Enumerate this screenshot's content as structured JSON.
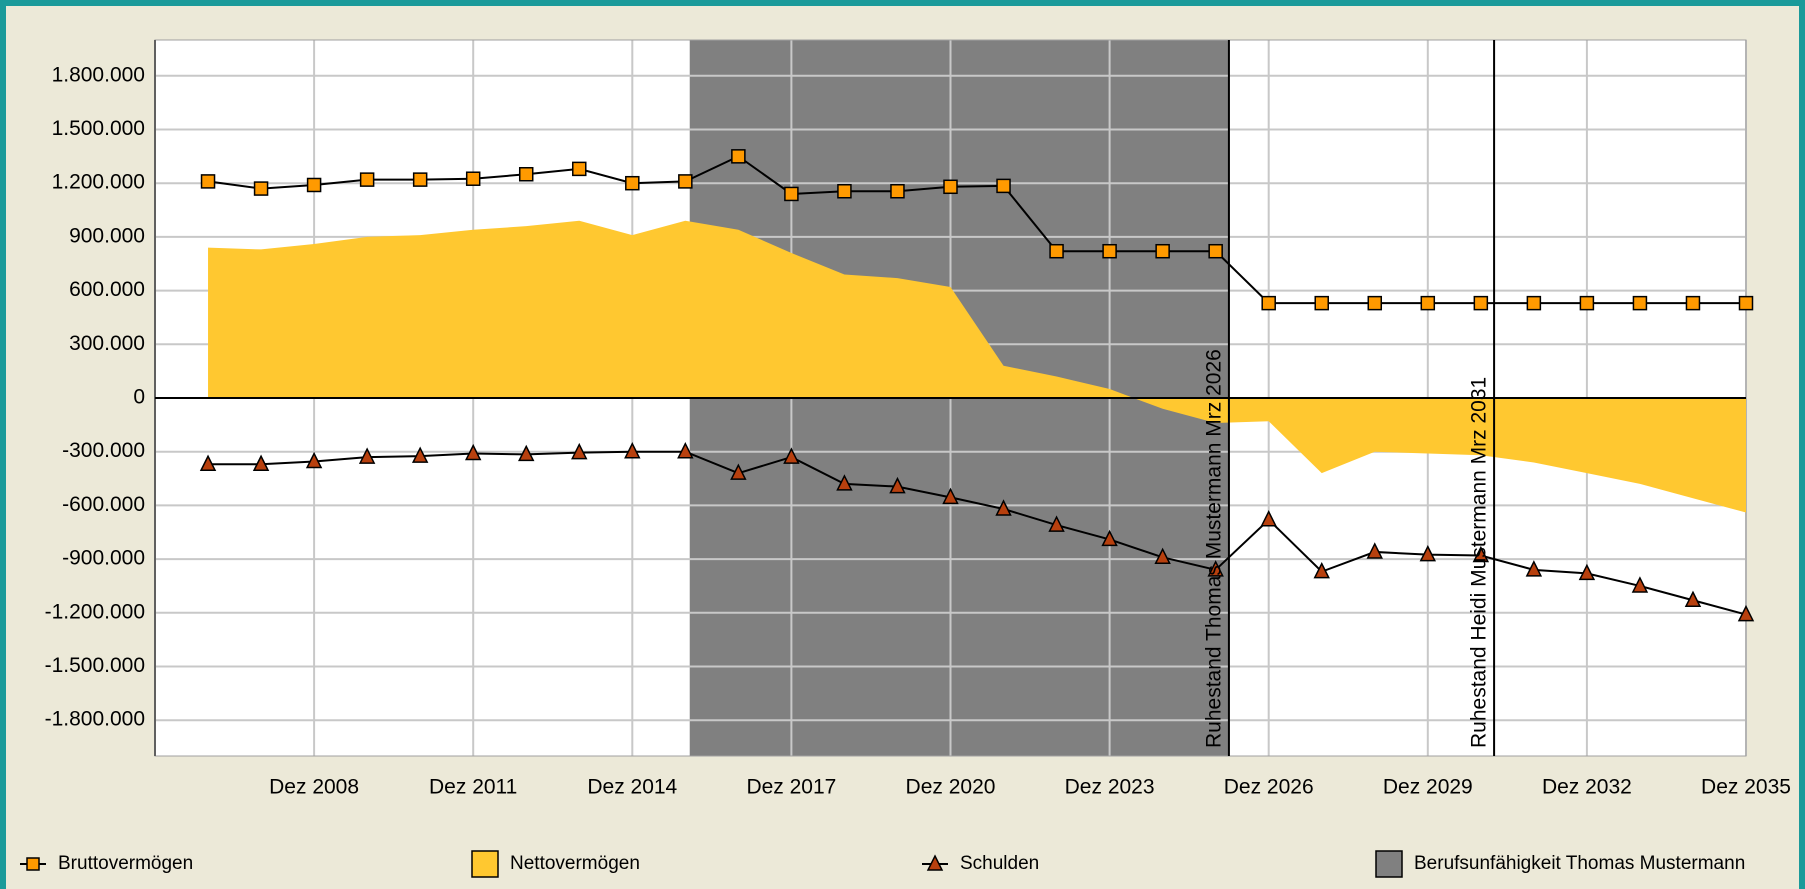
{
  "chart_data": {
    "type": "line",
    "x": [
      2006.917,
      2007.917,
      2008.917,
      2009.917,
      2010.917,
      2011.917,
      2012.917,
      2013.917,
      2014.917,
      2015.917,
      2016.917,
      2017.917,
      2018.917,
      2019.917,
      2020.917,
      2021.917,
      2022.917,
      2023.917,
      2024.917,
      2025.917,
      2026.917,
      2027.917,
      2028.917,
      2029.917,
      2030.917,
      2031.917,
      2032.917,
      2033.917,
      2034.917,
      2035.917
    ],
    "series": [
      {
        "name": "Bruttovermögen",
        "kind": "line",
        "marker": "square",
        "color": "#ff9a00",
        "values": [
          1210000,
          1170000,
          1190000,
          1220000,
          1220000,
          1225000,
          1250000,
          1280000,
          1200000,
          1210000,
          1350000,
          1140000,
          1155000,
          1155000,
          1180000,
          1185000,
          820000,
          820000,
          820000,
          820000,
          530000,
          530000,
          530000,
          530000,
          530000,
          530000,
          530000,
          530000,
          530000,
          530000
        ]
      },
      {
        "name": "Nettovermögen",
        "kind": "area",
        "color": "#ffc830",
        "values": [
          840000,
          830000,
          860000,
          900000,
          910000,
          940000,
          960000,
          990000,
          910000,
          990000,
          940000,
          810000,
          690000,
          670000,
          620000,
          180000,
          120000,
          50000,
          -60000,
          -140000,
          -130000,
          -420000,
          -300000,
          -310000,
          -320000,
          -360000,
          -420000,
          -480000,
          -560000,
          -640000
        ]
      },
      {
        "name": "Schulden",
        "kind": "line",
        "marker": "triangle",
        "color": "#b8400e",
        "values": [
          -370000,
          -370000,
          -355000,
          -330000,
          -325000,
          -310000,
          -315000,
          -305000,
          -300000,
          -300000,
          -420000,
          -330000,
          -480000,
          -495000,
          -555000,
          -620000,
          -710000,
          -790000,
          -890000,
          -960000,
          -680000,
          -970000,
          -860000,
          -875000,
          -880000,
          -960000,
          -980000,
          -1050000,
          -1130000,
          -1210000
        ]
      }
    ],
    "span": {
      "name": "Berufsunfähigkeit Thomas Mustermann",
      "color": "#808080",
      "x": [
        2016.0,
        2026.167
      ]
    },
    "annotations": [
      {
        "text": "Ruhestand Thomas Mustermann Mrz 2026",
        "x": 2026.167
      },
      {
        "text": "Ruhestand Heidi Mustermann Mrz 2031",
        "x": 2031.167
      }
    ],
    "xlim": [
      2005.917,
      2035.917
    ],
    "xticks": [
      {
        "value": 2008.917,
        "label": "Dez 2008"
      },
      {
        "value": 2011.917,
        "label": "Dez 2011"
      },
      {
        "value": 2014.917,
        "label": "Dez 2014"
      },
      {
        "value": 2017.917,
        "label": "Dez 2017"
      },
      {
        "value": 2020.917,
        "label": "Dez 2020"
      },
      {
        "value": 2023.917,
        "label": "Dez 2023"
      },
      {
        "value": 2026.917,
        "label": "Dez 2026"
      },
      {
        "value": 2029.917,
        "label": "Dez 2029"
      },
      {
        "value": 2032.917,
        "label": "Dez 2032"
      },
      {
        "value": 2035.917,
        "label": "Dez 2035"
      }
    ],
    "ylim": [
      -2000000,
      2000000
    ],
    "yticks": [
      {
        "value": 1800000,
        "label": "1.800.000"
      },
      {
        "value": 1500000,
        "label": "1.500.000"
      },
      {
        "value": 1200000,
        "label": "1.200.000"
      },
      {
        "value": 900000,
        "label": "900.000"
      },
      {
        "value": 600000,
        "label": "600.000"
      },
      {
        "value": 300000,
        "label": "300.000"
      },
      0,
      {
        "value": -300000,
        "label": "-300.000"
      },
      {
        "value": -600000,
        "label": "-600.000"
      },
      {
        "value": -900000,
        "label": "-900.000"
      },
      {
        "value": -1200000,
        "label": "-1.200.000"
      },
      {
        "value": -1500000,
        "label": "-1.500.000"
      },
      {
        "value": -1800000,
        "label": "-1.800.000"
      }
    ],
    "grid": true
  }
}
